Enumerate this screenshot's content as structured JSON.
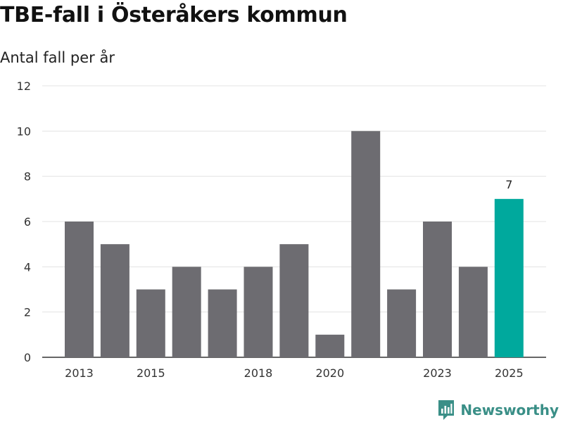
{
  "header": {
    "title": "TBE-fall i Österåkers kommun",
    "subtitle": "Antal fall per år"
  },
  "brand": {
    "name": "Newsworthy",
    "color": "#3a8f87"
  },
  "colors": {
    "bar": "#6d6c71",
    "highlight": "#00a99d",
    "grid": "#e3e3e3",
    "axis": "#333333",
    "text": "#333333"
  },
  "chart_data": {
    "type": "bar",
    "title": "TBE-fall i Österåkers kommun",
    "subtitle": "Antal fall per år",
    "xlabel": "",
    "ylabel": "",
    "ylim": [
      0,
      12
    ],
    "yticks": [
      0,
      2,
      4,
      6,
      8,
      10,
      12
    ],
    "grid": true,
    "categories": [
      "2013",
      "2014",
      "2015",
      "2016",
      "2017",
      "2018",
      "2019",
      "2020",
      "2021",
      "2022",
      "2023",
      "2024",
      "2025"
    ],
    "xtick_labels": [
      "2013",
      "2015",
      "2018",
      "2020",
      "2023",
      "2025"
    ],
    "values": [
      6,
      5,
      3,
      4,
      3,
      4,
      5,
      1,
      10,
      3,
      6,
      4,
      7
    ],
    "highlight_category": "2025",
    "data_labels": [
      {
        "category": "2025",
        "label": "7"
      }
    ]
  }
}
